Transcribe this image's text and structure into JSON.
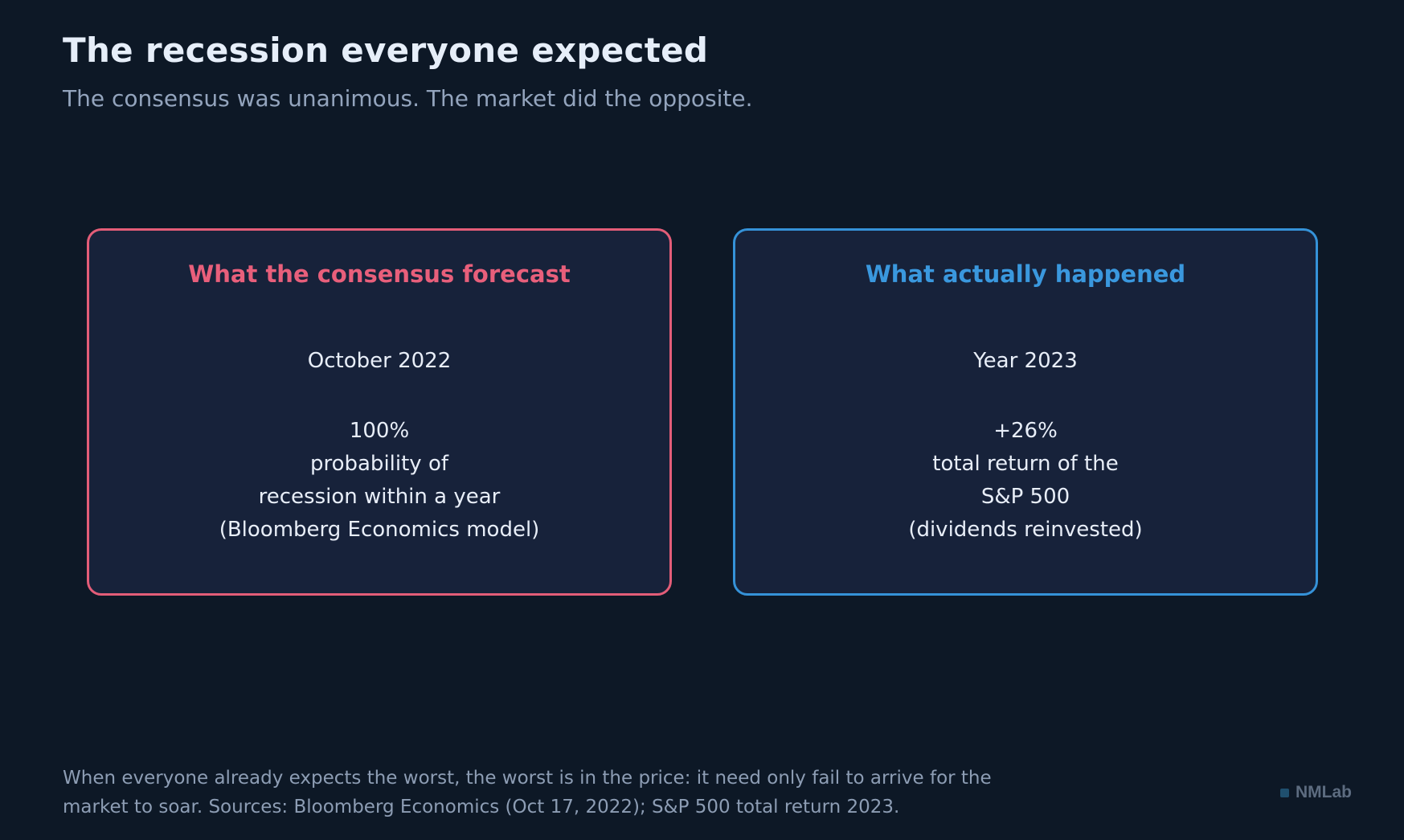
{
  "header": {
    "title": "The recession everyone expected",
    "subtitle": "The consensus was unanimous. The market did the opposite."
  },
  "cards": [
    {
      "heading": "What the consensus forecast",
      "period": "October 2022",
      "value": "100%",
      "lines": [
        "probability of",
        "recession within a year",
        "(Bloomberg Economics model)"
      ],
      "accent_color": "#e35d78"
    },
    {
      "heading": "What actually happened",
      "period": "Year 2023",
      "value": "+26%",
      "lines": [
        "total return of the",
        "S&P 500",
        "(dividends reinvested)"
      ],
      "accent_color": "#3592d8"
    }
  ],
  "footer": {
    "line1": "When everyone already expects the worst, the worst is in the price: it need only fail to arrive for the",
    "line2": "market to soar. Sources: Bloomberg Economics (Oct 17, 2022); S&P 500 total return 2023."
  },
  "brand": {
    "name": "NMLab",
    "icon": "square-logo-icon"
  },
  "colors": {
    "background": "#0d1826",
    "card_background": "#17223a",
    "text": "#e8eef8",
    "muted_text": "#93a4bd"
  }
}
